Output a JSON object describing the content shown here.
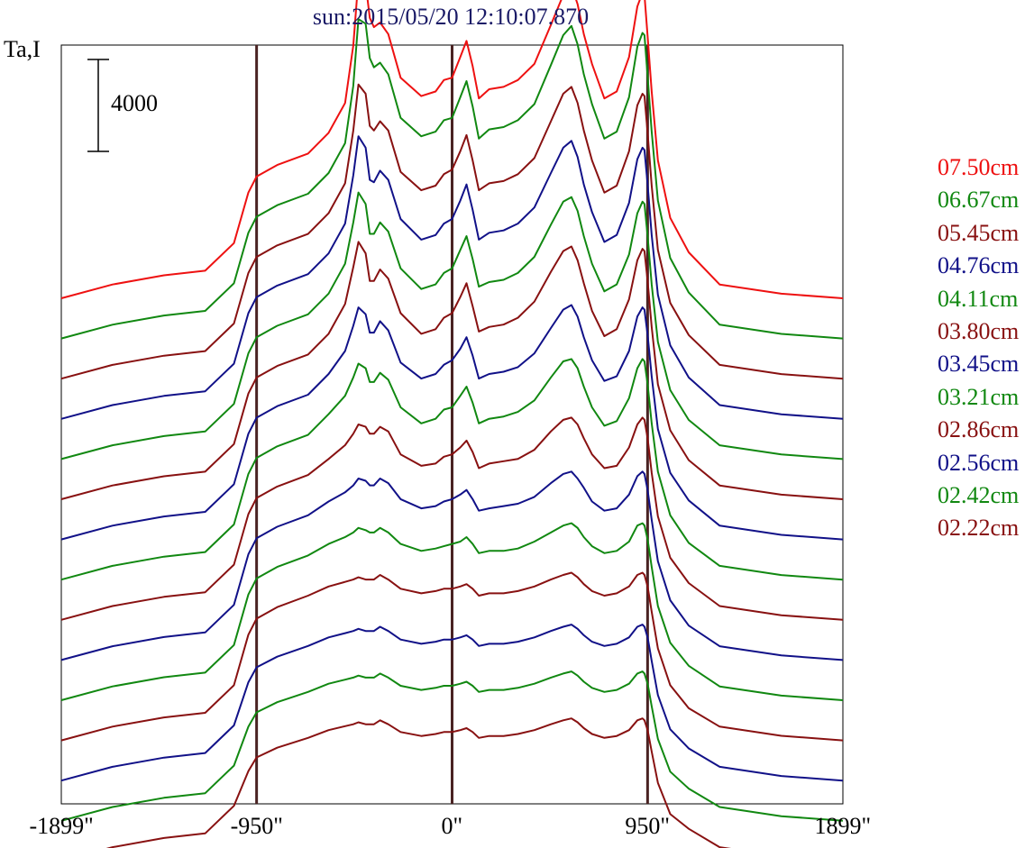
{
  "chart_data": {
    "type": "line",
    "title": "sun:2015/05/20 12:10:07.870",
    "ylabel": "Ta,I",
    "scale_bar_label": "4000",
    "scale_bar_value": 4000,
    "xlim": [
      -1899,
      1899
    ],
    "x_ticks": [
      {
        "value": -1899,
        "label": "-1899\""
      },
      {
        "value": -950,
        "label": "-950\""
      },
      {
        "value": 0,
        "label": "0\""
      },
      {
        "value": 950,
        "label": "950\""
      },
      {
        "value": 1899,
        "label": "1899\""
      }
    ],
    "vertical_lines_at": [
      -950,
      0,
      950
    ],
    "profile_x": [
      -1899,
      -1650,
      -1400,
      -1200,
      -1060,
      -990,
      -950,
      -850,
      -700,
      -600,
      -520,
      -480,
      -455,
      -420,
      -400,
      -380,
      -350,
      -310,
      -250,
      -150,
      -80,
      -40,
      0,
      40,
      70,
      100,
      130,
      180,
      250,
      320,
      400,
      480,
      540,
      580,
      610,
      640,
      680,
      740,
      800,
      860,
      900,
      925,
      935,
      950,
      970,
      1000,
      1060,
      1150,
      1300,
      1600,
      1899
    ],
    "series": [
      {
        "name": "07.50cm",
        "color": "#ee1111",
        "values": [
          0,
          600,
          1000,
          1200,
          2400,
          4600,
          5300,
          5800,
          6300,
          7200,
          8500,
          11000,
          13900,
          13700,
          12200,
          11800,
          12000,
          11500,
          9600,
          8800,
          9000,
          9500,
          9600,
          10500,
          11200,
          10100,
          8700,
          9100,
          9200,
          9500,
          10200,
          11900,
          13200,
          13600,
          12800,
          11500,
          10200,
          8700,
          9000,
          10500,
          12700,
          13300,
          13200,
          11400,
          9000,
          6000,
          3500,
          2000,
          600,
          200,
          0
        ]
      },
      {
        "name": "06.67cm",
        "color": "#118811",
        "values": [
          0,
          600,
          1000,
          1200,
          2400,
          4600,
          5300,
          5800,
          6300,
          7200,
          8500,
          11000,
          13900,
          13700,
          12200,
          11800,
          12000,
          11500,
          9600,
          8800,
          9000,
          9500,
          9600,
          10500,
          11200,
          10100,
          8700,
          9100,
          9200,
          9500,
          10200,
          11900,
          13200,
          13600,
          12800,
          11500,
          10200,
          8700,
          9000,
          10500,
          12700,
          13300,
          13200,
          11400,
          9000,
          6000,
          3500,
          2000,
          600,
          200,
          0
        ]
      },
      {
        "name": "05.45cm",
        "color": "#881111",
        "values": [
          0,
          600,
          1000,
          1200,
          2400,
          4600,
          5300,
          5800,
          6300,
          7200,
          8500,
          10800,
          12800,
          12400,
          11000,
          10800,
          11200,
          10800,
          9000,
          8200,
          8400,
          8900,
          9100,
          9900,
          10600,
          9500,
          8200,
          8500,
          8600,
          8900,
          9600,
          11200,
          12400,
          12700,
          12000,
          10800,
          9500,
          8100,
          8400,
          9900,
          11900,
          12400,
          12300,
          10700,
          8400,
          5600,
          3300,
          1900,
          600,
          200,
          0
        ]
      },
      {
        "name": "04.76cm",
        "color": "#111188",
        "values": [
          0,
          600,
          1000,
          1200,
          2400,
          4600,
          5300,
          5800,
          6300,
          7200,
          8500,
          10600,
          12300,
          11800,
          10400,
          10300,
          10800,
          10400,
          8700,
          7800,
          8000,
          8500,
          8700,
          9500,
          10200,
          9100,
          7800,
          8100,
          8200,
          8500,
          9200,
          10700,
          11800,
          12100,
          11400,
          10200,
          9000,
          7700,
          8000,
          9400,
          11300,
          11800,
          11700,
          10200,
          8000,
          5400,
          3200,
          1800,
          600,
          200,
          0
        ]
      },
      {
        "name": "04.11cm",
        "color": "#118811",
        "values": [
          0,
          600,
          1000,
          1200,
          2400,
          4600,
          5300,
          5800,
          6300,
          7200,
          8500,
          10300,
          11600,
          11100,
          9800,
          9800,
          10300,
          9900,
          8300,
          7400,
          7600,
          8100,
          8300,
          9100,
          9700,
          8700,
          7500,
          7700,
          7800,
          8100,
          8800,
          10200,
          11200,
          11400,
          10800,
          9700,
          8500,
          7300,
          7600,
          8900,
          10700,
          11200,
          11100,
          9700,
          7600,
          5100,
          3000,
          1700,
          600,
          200,
          0
        ]
      },
      {
        "name": "03.80cm",
        "color": "#881111",
        "values": [
          0,
          600,
          1000,
          1200,
          2400,
          4600,
          5300,
          5800,
          6300,
          7200,
          8500,
          10100,
          11200,
          10700,
          9500,
          9500,
          10000,
          9600,
          8100,
          7200,
          7400,
          7900,
          8100,
          8800,
          9400,
          8400,
          7300,
          7500,
          7600,
          7900,
          8600,
          9900,
          10800,
          11000,
          10400,
          9400,
          8200,
          7100,
          7400,
          8700,
          10400,
          10900,
          10800,
          9500,
          7500,
          5000,
          3000,
          1700,
          600,
          200,
          0
        ]
      },
      {
        "name": "03.45cm",
        "color": "#111188",
        "values": [
          0,
          600,
          1000,
          1200,
          2400,
          4600,
          5300,
          5800,
          6300,
          7200,
          8200,
          9300,
          10100,
          9800,
          9000,
          9000,
          9500,
          9100,
          7700,
          7000,
          7200,
          7600,
          7800,
          8300,
          8800,
          8000,
          7000,
          7200,
          7300,
          7500,
          8100,
          9200,
          10000,
          10200,
          9700,
          8800,
          7800,
          6900,
          7100,
          8200,
          9700,
          10100,
          10000,
          8900,
          7100,
          4800,
          2900,
          1700,
          600,
          200,
          0
        ]
      },
      {
        "name": "03.21cm",
        "color": "#118811",
        "values": [
          0,
          600,
          1000,
          1200,
          2400,
          4600,
          5300,
          5800,
          6300,
          7200,
          8000,
          8800,
          9400,
          9200,
          8600,
          8600,
          9000,
          8700,
          7500,
          6800,
          7000,
          7400,
          7500,
          8000,
          8400,
          7700,
          6800,
          7000,
          7100,
          7300,
          7800,
          8800,
          9500,
          9600,
          9200,
          8400,
          7500,
          6700,
          6900,
          7900,
          9200,
          9600,
          9500,
          8500,
          6800,
          4700,
          2800,
          1600,
          600,
          200,
          0
        ]
      },
      {
        "name": "02.86cm",
        "color": "#881111",
        "values": [
          0,
          600,
          1000,
          1200,
          2400,
          4600,
          5300,
          5800,
          6300,
          7000,
          7600,
          8100,
          8500,
          8400,
          8100,
          8100,
          8400,
          8200,
          7200,
          6700,
          6800,
          7100,
          7200,
          7500,
          7800,
          7300,
          6600,
          6800,
          6900,
          7000,
          7400,
          8200,
          8700,
          8800,
          8500,
          7900,
          7200,
          6600,
          6700,
          7500,
          8500,
          8800,
          8700,
          7900,
          6400,
          4500,
          2700,
          1600,
          600,
          200,
          0
        ]
      },
      {
        "name": "02.56cm",
        "color": "#111188",
        "values": [
          0,
          600,
          1000,
          1200,
          2400,
          4600,
          5300,
          5800,
          6300,
          6900,
          7300,
          7600,
          7900,
          7800,
          7600,
          7600,
          7900,
          7700,
          7000,
          6600,
          6700,
          6900,
          7000,
          7200,
          7400,
          7000,
          6500,
          6600,
          6700,
          6800,
          7100,
          7700,
          8100,
          8200,
          7900,
          7500,
          6900,
          6500,
          6600,
          7200,
          8000,
          8200,
          8100,
          7400,
          6100,
          4300,
          2600,
          1500,
          600,
          200,
          0
        ]
      },
      {
        "name": "02.42cm",
        "color": "#118811",
        "values": [
          0,
          600,
          1000,
          1200,
          2400,
          4600,
          5300,
          5800,
          6300,
          6800,
          7100,
          7300,
          7500,
          7400,
          7300,
          7300,
          7500,
          7300,
          6800,
          6500,
          6600,
          6700,
          6800,
          6900,
          7100,
          6800,
          6400,
          6500,
          6500,
          6600,
          6900,
          7300,
          7600,
          7700,
          7500,
          7100,
          6700,
          6400,
          6500,
          6900,
          7600,
          7700,
          7600,
          7000,
          5800,
          4100,
          2500,
          1500,
          600,
          200,
          0
        ]
      },
      {
        "name": "02.22cm",
        "color": "#881111",
        "values": [
          0,
          600,
          1000,
          1200,
          2400,
          4600,
          5300,
          5800,
          6300,
          6700,
          6900,
          7000,
          7100,
          7000,
          7000,
          7000,
          7200,
          7000,
          6600,
          6400,
          6500,
          6600,
          6600,
          6700,
          6800,
          6600,
          6300,
          6400,
          6400,
          6500,
          6700,
          7000,
          7200,
          7300,
          7100,
          6800,
          6500,
          6300,
          6400,
          6700,
          7200,
          7300,
          7200,
          6700,
          5600,
          4000,
          2400,
          1400,
          600,
          200,
          0
        ]
      }
    ],
    "extra_traces_without_legend": [
      {
        "color": "#111188"
      },
      {
        "color": "#118811"
      },
      {
        "color": "#881111"
      }
    ]
  }
}
